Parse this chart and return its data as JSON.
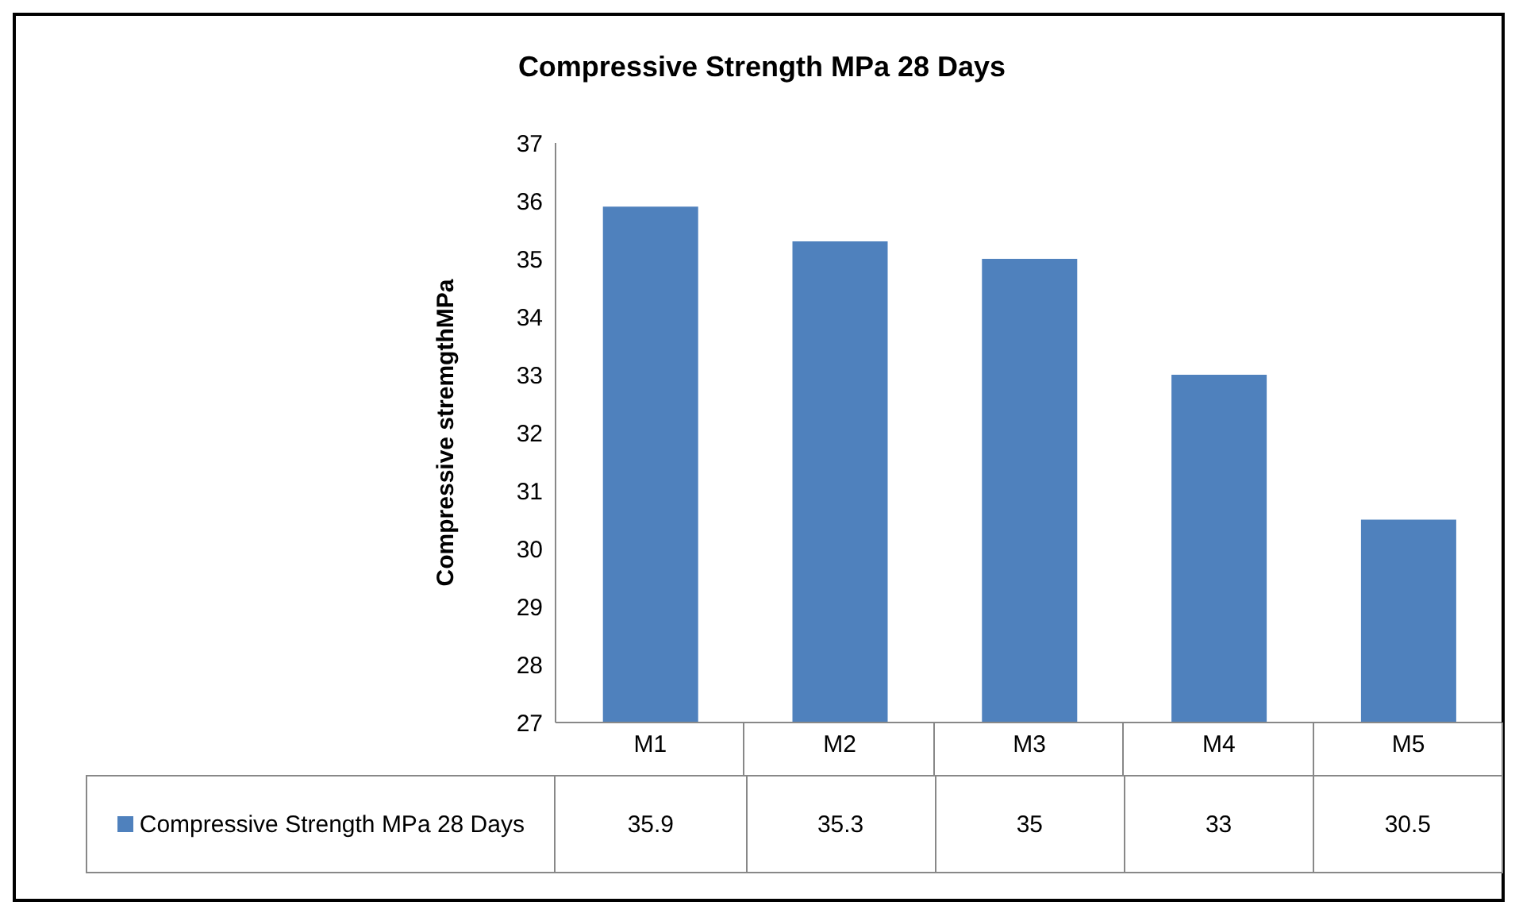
{
  "chart_data": {
    "type": "bar",
    "title": "Compressive Strength MPa 28 Days",
    "ylabel": "Compressive stremgthMPa",
    "categories": [
      "M1",
      "M2",
      "M3",
      "M4",
      "M5"
    ],
    "series": [
      {
        "name": "Compressive Strength MPa 28 Days",
        "color": "#4f81bd",
        "values": [
          35.9,
          35.3,
          35,
          33,
          30.5
        ]
      }
    ],
    "ylim": [
      27,
      37
    ],
    "yticks": [
      27,
      28,
      29,
      30,
      31,
      32,
      33,
      34,
      35,
      36,
      37
    ],
    "legend": "bottom",
    "data_labels": true
  }
}
